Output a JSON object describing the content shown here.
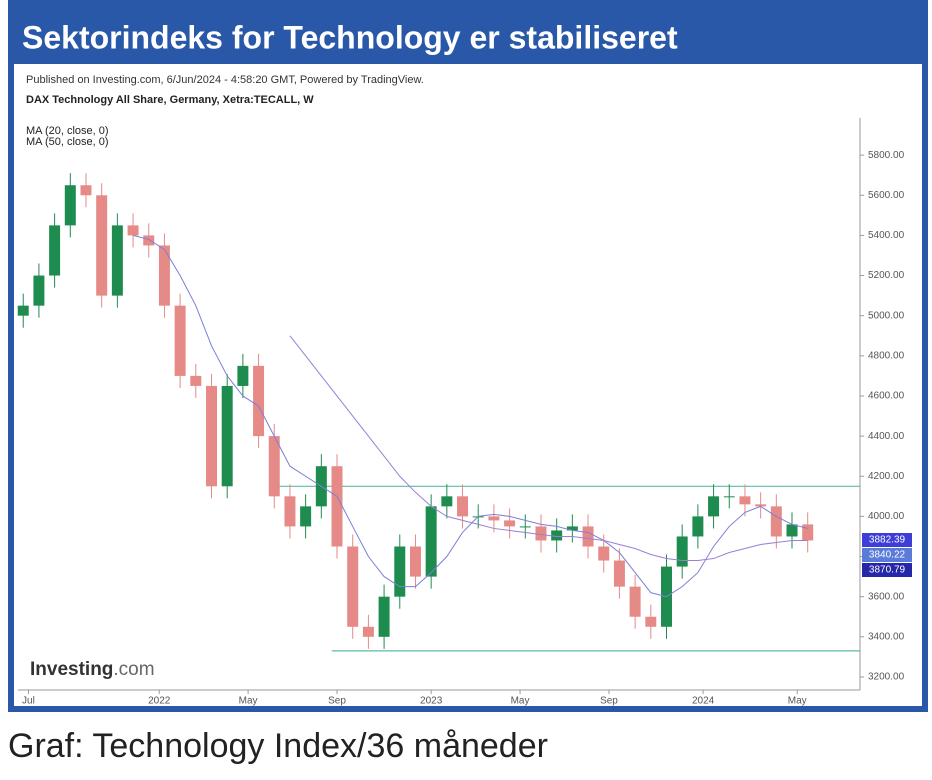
{
  "chart_data": {
    "type": "candlestick",
    "title": "Sektorindeks for Technology er stabiliseret",
    "source": "Published on Investing.com, 6/Jun/2024 - 4:58:20 GMT, Powered by TradingView.",
    "subtitle": "DAX Technology All Share, Germany, Xetra:TECALL, W",
    "caption": "Graf: Technology Index/36 måneder",
    "brand": "Investing",
    "brand_suffix": ".com",
    "x": [
      0,
      3,
      6,
      9,
      12,
      15,
      18,
      21,
      24,
      27,
      30,
      33,
      36,
      39,
      42,
      45,
      48,
      51,
      54,
      57,
      60,
      63,
      66,
      69,
      72,
      75,
      78,
      81,
      84,
      87,
      90,
      93,
      96,
      99,
      102,
      105,
      108,
      111,
      114,
      117,
      120,
      123,
      126,
      129,
      132,
      135,
      138,
      141,
      144,
      147,
      150
    ],
    "open": [
      5000,
      5050,
      5200,
      5450,
      5650,
      5600,
      5100,
      5450,
      5400,
      5350,
      5050,
      4700,
      4650,
      4150,
      4650,
      4750,
      4400,
      4100,
      3950,
      4050,
      4250,
      3850,
      3450,
      3400,
      3600,
      3850,
      3700,
      4050,
      4100,
      4000,
      4000,
      3980,
      3950,
      3950,
      3880,
      3930,
      3950,
      3850,
      3780,
      3650,
      3500,
      3450,
      3750,
      3900,
      4000,
      4100,
      4100,
      4060,
      4050,
      3900,
      3960
    ],
    "high": [
      5110,
      5260,
      5510,
      5710,
      5710,
      5660,
      5510,
      5510,
      5460,
      5410,
      5110,
      4760,
      4710,
      4710,
      4810,
      4810,
      4460,
      4160,
      4110,
      4310,
      4310,
      3910,
      3510,
      3660,
      3910,
      3910,
      4110,
      4160,
      4160,
      4060,
      4060,
      4040,
      4010,
      4010,
      3990,
      4010,
      4010,
      3910,
      3840,
      3710,
      3560,
      3810,
      3960,
      4060,
      4160,
      4160,
      4160,
      4120,
      4110,
      4020,
      4020
    ],
    "low": [
      4940,
      4990,
      5140,
      5390,
      5540,
      5040,
      5040,
      5340,
      5290,
      4990,
      4640,
      4590,
      4090,
      4090,
      4590,
      4340,
      4040,
      3890,
      3890,
      3990,
      3790,
      3390,
      3340,
      3340,
      3540,
      3640,
      3640,
      3990,
      3940,
      3940,
      3920,
      3890,
      3890,
      3820,
      3820,
      3870,
      3790,
      3720,
      3590,
      3440,
      3390,
      3390,
      3690,
      3840,
      3940,
      4040,
      4000,
      3990,
      3840,
      3840,
      3820
    ],
    "close": [
      5050,
      5200,
      5450,
      5650,
      5600,
      5100,
      5450,
      5400,
      5350,
      5050,
      4700,
      4650,
      4150,
      4650,
      4750,
      4400,
      4100,
      3950,
      4050,
      4250,
      3850,
      3450,
      3400,
      3600,
      3850,
      3700,
      4050,
      4100,
      4000,
      4000,
      3980,
      3950,
      3950,
      3880,
      3930,
      3950,
      3850,
      3780,
      3650,
      3500,
      3450,
      3750,
      3900,
      4000,
      4100,
      4100,
      4060,
      4050,
      3900,
      3960,
      3880
    ],
    "up_color": "#1e8c4e",
    "down_color": "#e58a87",
    "series": [
      {
        "name": "MA (20, close, 0)",
        "color": "#7b7fd6",
        "values": [
          null,
          null,
          null,
          null,
          null,
          null,
          null,
          5400,
          5380,
          5330,
          5200,
          5050,
          4850,
          4700,
          4600,
          4550,
          4400,
          4250,
          4200,
          4150,
          4100,
          3950,
          3800,
          3700,
          3650,
          3650,
          3720,
          3800,
          3920,
          4000,
          4010,
          4000,
          3980,
          3960,
          3950,
          3930,
          3920,
          3880,
          3820,
          3720,
          3620,
          3600,
          3650,
          3720,
          3850,
          3950,
          4020,
          4050,
          4000,
          3960,
          3940
        ]
      },
      {
        "name": "MA (50, close, 0)",
        "color": "#9a7fd6",
        "values": [
          null,
          null,
          null,
          null,
          null,
          null,
          null,
          null,
          null,
          null,
          null,
          null,
          null,
          null,
          null,
          null,
          null,
          4900,
          4800,
          4700,
          4600,
          4500,
          4400,
          4300,
          4200,
          4120,
          4050,
          4000,
          3980,
          3960,
          3940,
          3930,
          3920,
          3910,
          3900,
          3900,
          3890,
          3880,
          3860,
          3840,
          3810,
          3790,
          3780,
          3780,
          3790,
          3820,
          3840,
          3860,
          3870,
          3880,
          3880
        ]
      }
    ],
    "hlines": [
      {
        "y": 4150,
        "x": 48,
        "color": "#5fb8a8"
      },
      {
        "y": 3330,
        "x": 59,
        "color": "#5fb8a8"
      }
    ],
    "price_labels": [
      {
        "value": 3882.39,
        "label": "3882.39",
        "color": "#3d3dd8"
      },
      {
        "value": 3840.22,
        "label": "3840.22",
        "color": "#5a7bd8"
      },
      {
        "value": 3870.79,
        "label": "3870.79",
        "color": "#2626a8"
      }
    ],
    "xlim": [
      -1,
      160
    ],
    "xticks": [
      {
        "value": 1,
        "label": "Jul"
      },
      {
        "value": 26,
        "label": "2022"
      },
      {
        "value": 43,
        "label": "May"
      },
      {
        "value": 60,
        "label": "Sep"
      },
      {
        "value": 78,
        "label": "2023"
      },
      {
        "value": 95,
        "label": "May"
      },
      {
        "value": 112,
        "label": "Sep"
      },
      {
        "value": 130,
        "label": "2024"
      },
      {
        "value": 148,
        "label": "May"
      }
    ],
    "ylim": [
      3135,
      5985
    ],
    "yticks": [
      {
        "value": 3200,
        "label": "3200.00"
      },
      {
        "value": 3400,
        "label": "3400.00"
      },
      {
        "value": 3600,
        "label": "3600.00"
      },
      {
        "value": 3800,
        "label": "3800.00"
      },
      {
        "value": 4000,
        "label": "4000.00"
      },
      {
        "value": 4200,
        "label": "4200.00"
      },
      {
        "value": 4400,
        "label": "4400.00"
      },
      {
        "value": 4600,
        "label": "4600.00"
      },
      {
        "value": 4800,
        "label": "4800.00"
      },
      {
        "value": 5000,
        "label": "5000.00"
      },
      {
        "value": 5200,
        "label": "5200.00"
      },
      {
        "value": 5400,
        "label": "5400.00"
      },
      {
        "value": 5600,
        "label": "5600.00"
      },
      {
        "value": 5800,
        "label": "5800.00"
      }
    ]
  }
}
